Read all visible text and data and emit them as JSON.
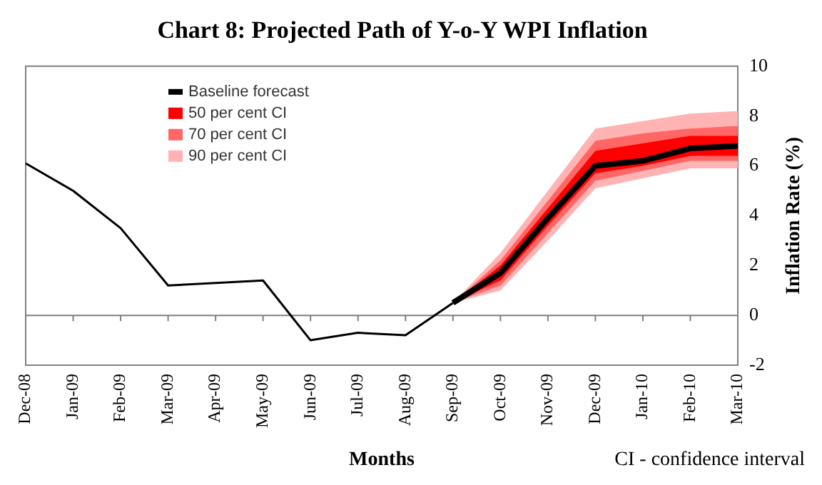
{
  "chart_data": {
    "type": "line",
    "title": "Chart 8: Projected Path of Y-o-Y WPI Inflation",
    "xlabel": "Months",
    "ylabel": "Inflation Rate (%)",
    "categories": [
      "Dec-08",
      "Jan-09",
      "Feb-09",
      "Mar-09",
      "Apr-09",
      "May-09",
      "Jun-09",
      "Jul-09",
      "Aug-09",
      "Sep-09",
      "Oct-09",
      "Nov-09",
      "Dec-09",
      "Jan-10",
      "Feb-10",
      "Mar-10"
    ],
    "series": [
      {
        "type": "line",
        "color": "#000000",
        "values": [
          6.1,
          5.0,
          3.5,
          1.2,
          1.3,
          1.4,
          -1.0,
          -0.7,
          -0.8,
          0.5,
          null,
          null,
          null,
          null,
          null,
          null
        ]
      },
      {
        "type": "line",
        "name": "Baseline forecast",
        "color": "#000000",
        "values": [
          null,
          null,
          null,
          null,
          null,
          null,
          null,
          null,
          null,
          0.5,
          1.7,
          3.9,
          6.0,
          6.2,
          6.7,
          6.8
        ]
      },
      {
        "type": "area",
        "name": "50 per cent CI",
        "color": "#ff0000",
        "values": [
          null,
          null,
          null,
          null,
          null,
          null,
          null,
          null,
          null,
          null,
          null,
          null,
          null,
          null,
          null,
          null
        ],
        "lower": [
          null,
          null,
          null,
          null,
          null,
          null,
          null,
          null,
          null,
          0.5,
          1.4,
          3.6,
          5.7,
          6.0,
          6.4,
          6.4
        ],
        "upper": [
          null,
          null,
          null,
          null,
          null,
          null,
          null,
          null,
          null,
          0.5,
          2.0,
          4.3,
          6.6,
          6.9,
          7.2,
          7.2
        ]
      },
      {
        "type": "area",
        "name": "70 per cent CI",
        "color": "#ff6666",
        "values": [
          null,
          null,
          null,
          null,
          null,
          null,
          null,
          null,
          null,
          null,
          null,
          null,
          null,
          null,
          null,
          null
        ],
        "lower": [
          null,
          null,
          null,
          null,
          null,
          null,
          null,
          null,
          null,
          0.5,
          1.2,
          3.3,
          5.4,
          5.8,
          6.2,
          6.2
        ],
        "upper": [
          null,
          null,
          null,
          null,
          null,
          null,
          null,
          null,
          null,
          0.5,
          2.2,
          4.6,
          7.0,
          7.3,
          7.5,
          7.6
        ]
      },
      {
        "type": "area",
        "name": "90 per cent CI",
        "color": "#ffb3b3",
        "values": [
          null,
          null,
          null,
          null,
          null,
          null,
          null,
          null,
          null,
          null,
          null,
          null,
          null,
          null,
          null,
          null
        ],
        "lower": [
          null,
          null,
          null,
          null,
          null,
          null,
          null,
          null,
          null,
          0.5,
          1.0,
          3.0,
          5.1,
          5.5,
          5.9,
          5.9
        ],
        "upper": [
          null,
          null,
          null,
          null,
          null,
          null,
          null,
          null,
          null,
          0.5,
          2.5,
          5.0,
          7.5,
          7.8,
          8.1,
          8.2
        ]
      }
    ],
    "ylim": [
      -2,
      10
    ],
    "yticks": [
      -2,
      0,
      2,
      4,
      6,
      8,
      10
    ],
    "ref_lines": [
      {
        "axis": "y",
        "value": 0,
        "color": "#808080"
      }
    ],
    "legend": "top left",
    "annotations": [
      "CI - confidence interval"
    ]
  }
}
